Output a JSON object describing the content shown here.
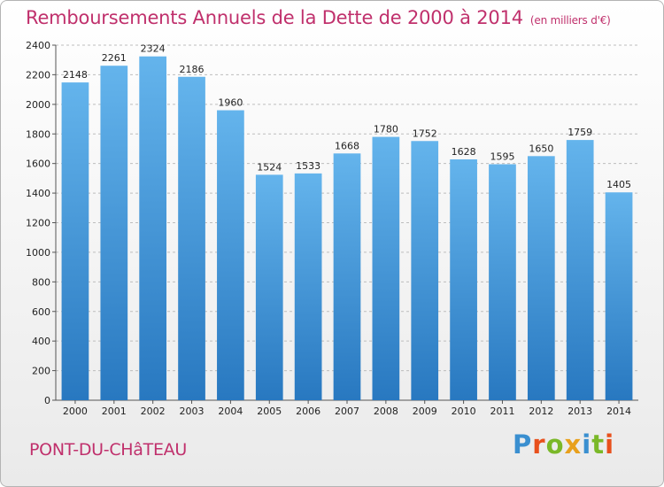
{
  "header": {
    "title": "Remboursements Annuels de la Dette de 2000 à 2014",
    "subtitle": "(en milliers d'€)"
  },
  "footer": {
    "town": "PONT-DU-CHâTEAU",
    "logo": {
      "text": "Proxiti",
      "letters": [
        {
          "ch": "P",
          "color": "#3a8fd0"
        },
        {
          "ch": "r",
          "color": "#e8501c"
        },
        {
          "ch": "o",
          "color": "#7ab828"
        },
        {
          "ch": "x",
          "color": "#e8a01c"
        },
        {
          "ch": "i",
          "color": "#3a8fd0"
        },
        {
          "ch": "t",
          "color": "#7ab828"
        },
        {
          "ch": "i",
          "color": "#e8501c"
        }
      ]
    }
  },
  "colors": {
    "bar_top": "#64b4ec",
    "bar_bottom": "#2878c0",
    "grid": "#bdbdbd",
    "title": "#c0306c"
  },
  "chart_data": {
    "type": "bar",
    "categories": [
      "2000",
      "2001",
      "2002",
      "2003",
      "2004",
      "2005",
      "2006",
      "2007",
      "2008",
      "2009",
      "2010",
      "2011",
      "2012",
      "2013",
      "2014"
    ],
    "values": [
      2148,
      2261,
      2324,
      2186,
      1960,
      1524,
      1533,
      1668,
      1780,
      1752,
      1628,
      1595,
      1650,
      1759,
      1405
    ],
    "title": "Remboursements Annuels de la Dette de 2000 à 2014",
    "subtitle": "(en milliers d'€)",
    "xlabel": "",
    "ylabel": "",
    "ylim": [
      0,
      2400
    ],
    "yticks": [
      0,
      200,
      400,
      600,
      800,
      1000,
      1200,
      1400,
      1600,
      1800,
      2000,
      2200,
      2400
    ],
    "grid": true,
    "legend": "none"
  }
}
